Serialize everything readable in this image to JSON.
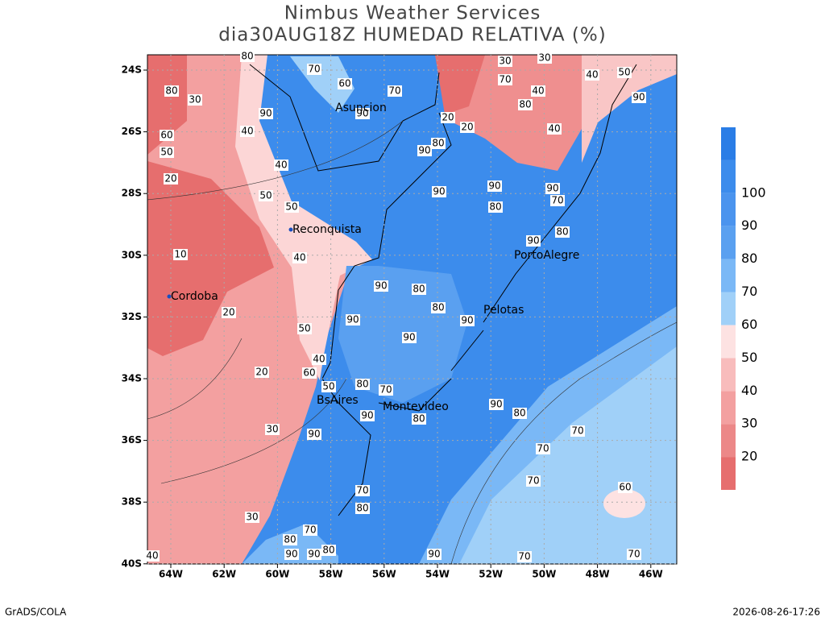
{
  "header": {
    "title": "Nimbus Weather Services",
    "subtitle": "dia30AUG18Z HUMEDAD RELATIVA (%)"
  },
  "map": {
    "lon_labels": [
      "64W",
      "62W",
      "60W",
      "58W",
      "56W",
      "54W",
      "52W",
      "50W",
      "48W",
      "46W"
    ],
    "lat_labels": [
      "24S",
      "26S",
      "28S",
      "30S",
      "32S",
      "34S",
      "36S",
      "38S",
      "40S"
    ]
  },
  "cities": [
    {
      "name": "Asuncion"
    },
    {
      "name": "Reconquista"
    },
    {
      "name": "Cordoba"
    },
    {
      "name": "PortoAlegre"
    },
    {
      "name": "Pelotas"
    },
    {
      "name": "BsAires"
    },
    {
      "name": "Montevideo"
    }
  ],
  "colorbar": {
    "labels": [
      "20",
      "30",
      "40",
      "50",
      "60",
      "70",
      "80",
      "90",
      "100"
    ]
  },
  "contour_labels": [
    "90",
    "90",
    "70",
    "60",
    "70",
    "80",
    "40",
    "40",
    "50",
    "50",
    "40",
    "10",
    "20",
    "30",
    "80",
    "60",
    "50",
    "20",
    "20",
    "30",
    "30",
    "40",
    "50",
    "40",
    "60",
    "50",
    "90",
    "90",
    "80",
    "80",
    "90",
    "90",
    "90",
    "90",
    "80",
    "70",
    "80",
    "70",
    "80",
    "90",
    "80",
    "90",
    "20",
    "20",
    "90",
    "80",
    "90",
    "80",
    "70",
    "90",
    "70",
    "70",
    "70",
    "60",
    "70",
    "70",
    "90",
    "80",
    "90",
    "40",
    "40",
    "40",
    "50",
    "90",
    "30",
    "30",
    "70",
    "80",
    "90",
    "80",
    "70",
    "90",
    "80"
  ],
  "footer": {
    "left": "GrADS/COLA",
    "right": "2026-08-26-17:26"
  }
}
